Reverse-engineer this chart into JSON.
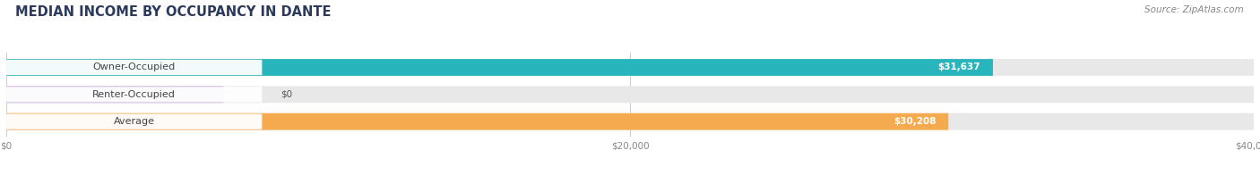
{
  "title": "MEDIAN INCOME BY OCCUPANCY IN DANTE",
  "source": "Source: ZipAtlas.com",
  "categories": [
    "Owner-Occupied",
    "Renter-Occupied",
    "Average"
  ],
  "values": [
    31637,
    0,
    30208
  ],
  "labels": [
    "$31,637",
    "$0",
    "$30,208"
  ],
  "bar_colors": [
    "#29b5bc",
    "#c5a8d3",
    "#f6aa50"
  ],
  "bar_bg_color": "#e8e8e8",
  "xlim": [
    0,
    40000
  ],
  "xticks": [
    0,
    20000,
    40000
  ],
  "xtick_labels": [
    "$0",
    "$20,000",
    "$40,000"
  ],
  "title_fontsize": 10.5,
  "source_fontsize": 7.5,
  "bar_label_fontsize": 7.5,
  "cat_label_fontsize": 8,
  "bar_height": 0.62,
  "background_color": "#ffffff",
  "title_color": "#2b3a5c",
  "source_color": "#888888",
  "cat_label_color": "#444444",
  "val_label_color": "#ffffff",
  "zero_label_color": "#555555",
  "grid_color": "#cccccc",
  "tick_color": "#888888"
}
